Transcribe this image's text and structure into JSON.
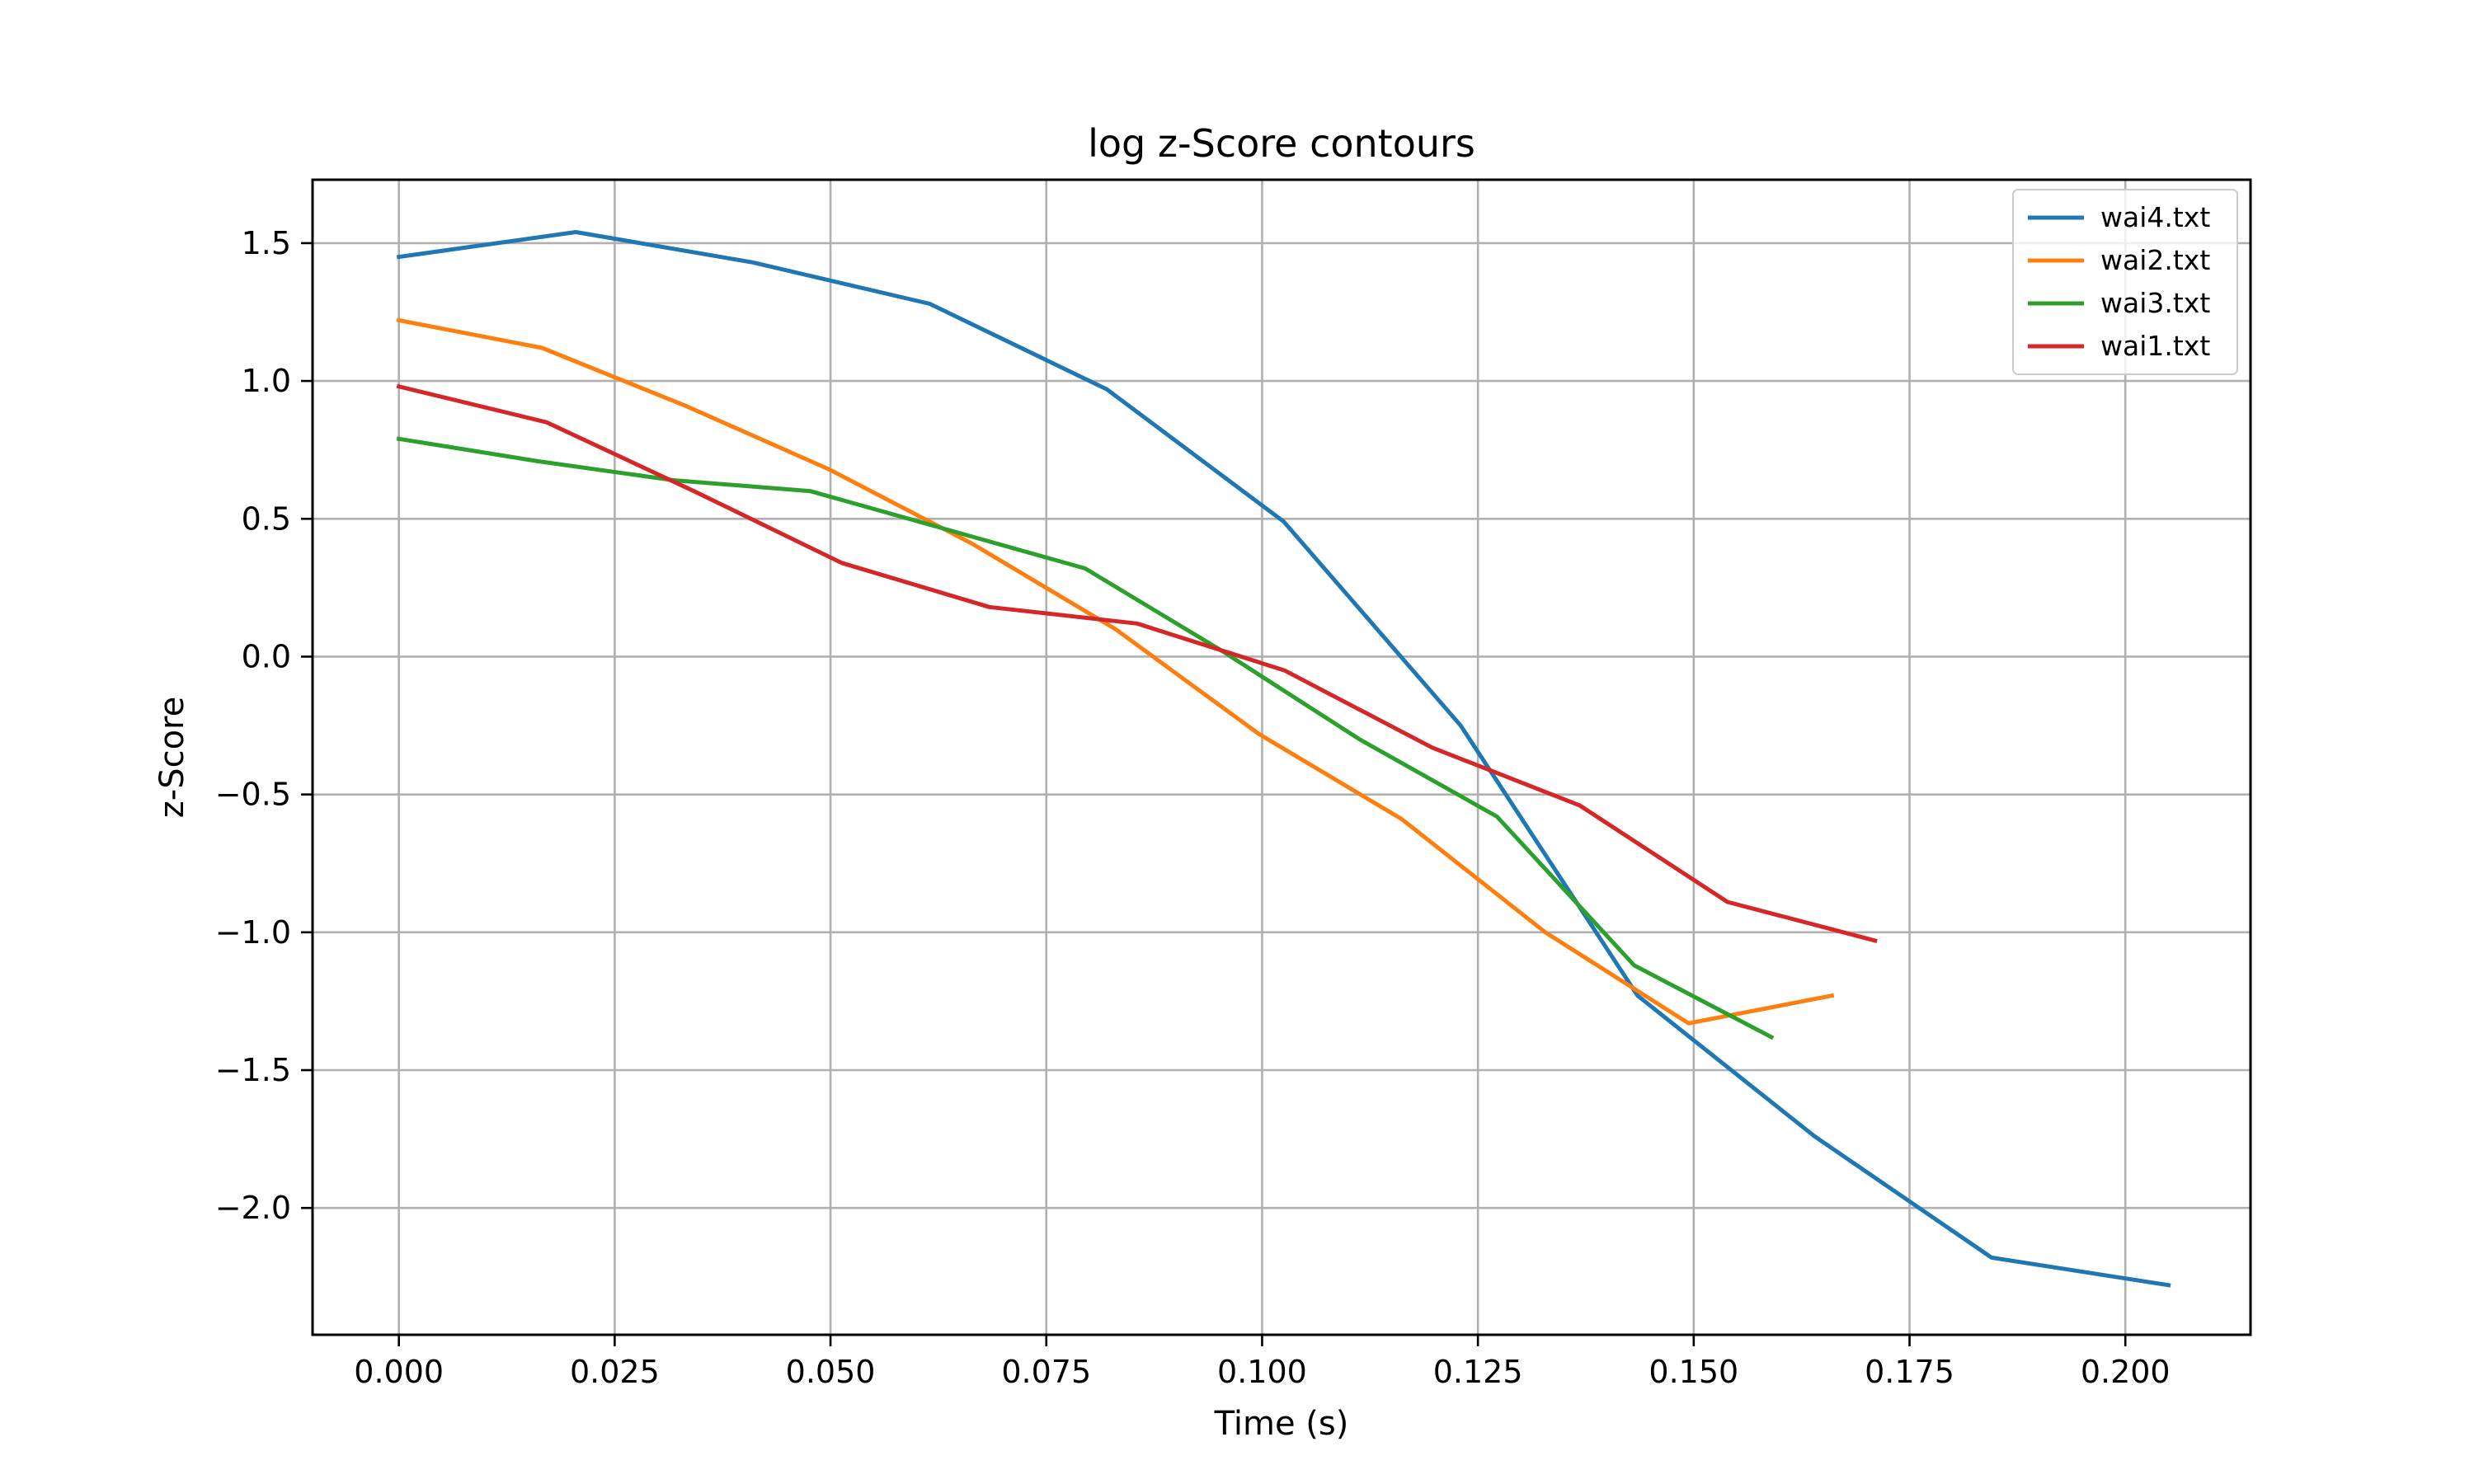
{
  "chart_data": {
    "type": "line",
    "title": "log z-Score contours",
    "xlabel": "Time (s)",
    "ylabel": "z-Score",
    "xlim": [
      -0.01,
      0.2145
    ],
    "ylim": [
      -2.46,
      1.73
    ],
    "x_ticks": [
      0.0,
      0.025,
      0.05,
      0.075,
      0.1,
      0.125,
      0.15,
      0.175,
      0.2
    ],
    "x_tick_labels": [
      "0.000",
      "0.025",
      "0.050",
      "0.075",
      "0.100",
      "0.125",
      "0.150",
      "0.175",
      "0.200"
    ],
    "y_ticks": [
      1.5,
      1.0,
      0.5,
      0.0,
      -0.5,
      -1.0,
      -1.5,
      -2.0
    ],
    "y_tick_labels": [
      "1.5",
      "1.0",
      "0.5",
      "0.0",
      "−0.5",
      "−1.0",
      "−1.5",
      "−2.0"
    ],
    "grid": true,
    "legend_position": "top-right",
    "series": [
      {
        "name": "wai4.txt",
        "color": "#1f77b4",
        "points": [
          [
            0.0,
            1.45
          ],
          [
            0.0205,
            1.54
          ],
          [
            0.041,
            1.43
          ],
          [
            0.0615,
            1.28
          ],
          [
            0.082,
            0.97
          ],
          [
            0.1025,
            0.49
          ],
          [
            0.123,
            -0.25
          ],
          [
            0.1435,
            -1.23
          ],
          [
            0.164,
            -1.74
          ],
          [
            0.1845,
            -2.18
          ],
          [
            0.205,
            -2.28
          ]
        ]
      },
      {
        "name": "wai2.txt",
        "color": "#ff7f0e",
        "points": [
          [
            0.0,
            1.22
          ],
          [
            0.0166,
            1.12
          ],
          [
            0.0332,
            0.91
          ],
          [
            0.0498,
            0.68
          ],
          [
            0.0664,
            0.41
          ],
          [
            0.083,
            0.1
          ],
          [
            0.0996,
            -0.28
          ],
          [
            0.1162,
            -0.59
          ],
          [
            0.1328,
            -1.0
          ],
          [
            0.1494,
            -1.33
          ],
          [
            0.166,
            -1.23
          ]
        ]
      },
      {
        "name": "wai3.txt",
        "color": "#2ca02c",
        "points": [
          [
            0.0,
            0.79
          ],
          [
            0.0159,
            0.71
          ],
          [
            0.0318,
            0.64
          ],
          [
            0.0477,
            0.6
          ],
          [
            0.0636,
            0.46
          ],
          [
            0.0795,
            0.32
          ],
          [
            0.0954,
            0.02
          ],
          [
            0.1113,
            -0.3
          ],
          [
            0.1272,
            -0.58
          ],
          [
            0.1431,
            -1.12
          ],
          [
            0.159,
            -1.38
          ]
        ]
      },
      {
        "name": "wai1.txt",
        "color": "#d62728",
        "points": [
          [
            0.0,
            0.98
          ],
          [
            0.0171,
            0.85
          ],
          [
            0.0342,
            0.6
          ],
          [
            0.0513,
            0.34
          ],
          [
            0.0684,
            0.18
          ],
          [
            0.0855,
            0.12
          ],
          [
            0.1026,
            -0.05
          ],
          [
            0.1197,
            -0.33
          ],
          [
            0.1368,
            -0.54
          ],
          [
            0.1539,
            -0.89
          ],
          [
            0.171,
            -1.03
          ]
        ]
      }
    ]
  }
}
